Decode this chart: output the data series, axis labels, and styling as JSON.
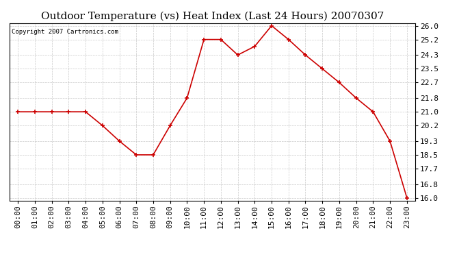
{
  "title": "Outdoor Temperature (vs) Heat Index (Last 24 Hours) 20070307",
  "copyright": "Copyright 2007 Cartronics.com",
  "hours": [
    "00:00",
    "01:00",
    "02:00",
    "03:00",
    "04:00",
    "05:00",
    "06:00",
    "07:00",
    "08:00",
    "09:00",
    "10:00",
    "11:00",
    "12:00",
    "13:00",
    "14:00",
    "15:00",
    "16:00",
    "17:00",
    "18:00",
    "19:00",
    "20:00",
    "21:00",
    "22:00",
    "23:00"
  ],
  "values": [
    21.0,
    21.0,
    21.0,
    21.0,
    21.0,
    20.2,
    19.3,
    18.5,
    18.5,
    20.2,
    21.8,
    25.2,
    25.2,
    24.3,
    24.8,
    26.0,
    25.2,
    24.3,
    23.5,
    22.7,
    21.8,
    21.0,
    19.3,
    16.0
  ],
  "yticks": [
    16.0,
    16.8,
    17.7,
    18.5,
    19.3,
    20.2,
    21.0,
    21.8,
    22.7,
    23.5,
    24.3,
    25.2,
    26.0
  ],
  "ymin": 15.85,
  "ymax": 26.15,
  "line_color": "#cc0000",
  "marker_color": "#cc0000",
  "bg_color": "#ffffff",
  "plot_bg_color": "#ffffff",
  "grid_color": "#bbbbbb",
  "title_fontsize": 11,
  "copyright_fontsize": 6.5,
  "tick_fontsize": 8,
  "ytick_fontsize": 8
}
